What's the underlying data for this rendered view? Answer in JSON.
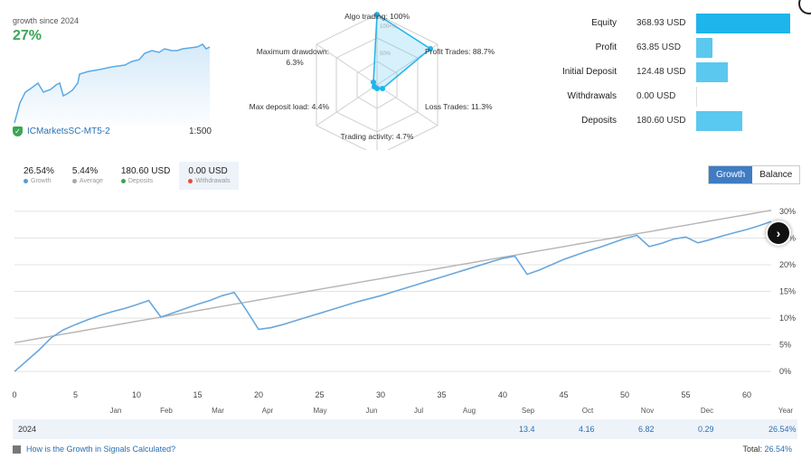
{
  "summary": {
    "label": "growth since 2024",
    "percent": "27%"
  },
  "account": {
    "broker": "ICMarketsSC-MT5-2",
    "leverage": "1:500"
  },
  "radar": {
    "algo": "Algo trading: 100%",
    "profit": "Profit Trades: 88.7%",
    "loss": "Loss Trades: 11.3%",
    "activity": "Trading activity: 4.7%",
    "maxload": "Max deposit load: 4.4%",
    "drawdown_l1": "Maximum drawdown:",
    "drawdown_l2": "6.3%",
    "tick100": "100+%",
    "tick50": "50%"
  },
  "balance": [
    {
      "label": "Equity",
      "value": "368.93 USD",
      "amount": 368.93
    },
    {
      "label": "Profit",
      "value": "63.85 USD",
      "amount": 63.85
    },
    {
      "label": "Initial Deposit",
      "value": "124.48 USD",
      "amount": 124.48
    },
    {
      "label": "Withdrawals",
      "value": "0.00 USD",
      "amount": 0
    },
    {
      "label": "Deposits",
      "value": "180.60 USD",
      "amount": 180.6
    }
  ],
  "stats": [
    {
      "value": "26.54%",
      "label": "Growth",
      "color": "#5a9bd5"
    },
    {
      "value": "5.44%",
      "label": "Average",
      "color": "#aaaaaa"
    },
    {
      "value": "180.60 USD",
      "label": "Deposits",
      "color": "#3aa655"
    },
    {
      "value": "0.00 USD",
      "label": "Withdrawals",
      "color": "#e74c3c"
    }
  ],
  "tabs": {
    "growth": "Growth",
    "balance": "Balance"
  },
  "chart_data": {
    "type": "line",
    "x": [
      0,
      1,
      2,
      3,
      4,
      5,
      6,
      7,
      8,
      9,
      10,
      11,
      12,
      13,
      14,
      15,
      16,
      17,
      18,
      19,
      20,
      21,
      22,
      23,
      24,
      25,
      26,
      27,
      28,
      29,
      30,
      31,
      32,
      33,
      34,
      35,
      36,
      37,
      38,
      39,
      40,
      41,
      42,
      43,
      44,
      45,
      46,
      47,
      48,
      49,
      50,
      51,
      52,
      53,
      54,
      55,
      56,
      57,
      58,
      59,
      60,
      61,
      62
    ],
    "series": [
      {
        "values": [
          0,
          2,
          4,
          6.3,
          7.8,
          8.8,
          9.7,
          10.5,
          11.2,
          11.8,
          12.5,
          13.3,
          10.2,
          11,
          11.8,
          12.6,
          13.3,
          14.2,
          14.8,
          11.5,
          7.9,
          8.2,
          8.8,
          9.5,
          10.2,
          10.9,
          11.6,
          12.3,
          13,
          13.6,
          14.2,
          14.9,
          15.6,
          16.3,
          17,
          17.7,
          18.4,
          19.1,
          19.8,
          20.5,
          21.2,
          21.6,
          18.2,
          19,
          20,
          21,
          21.8,
          22.6,
          23.3,
          24.1,
          24.9,
          25.5,
          23.4,
          24,
          24.8,
          25.2,
          24.1,
          24.7,
          25.4,
          26,
          26.6,
          27.3,
          28.1
        ]
      },
      {
        "values": [
          5.4,
          5.8,
          6.2,
          6.6,
          7,
          7.4,
          7.8,
          8.2,
          8.6,
          9,
          9.4,
          9.8,
          10.2,
          10.6,
          11,
          11.4,
          11.8,
          12.2,
          12.6,
          13,
          13.4,
          13.8,
          14.2,
          14.6,
          15,
          15.4,
          15.8,
          16.2,
          16.6,
          17,
          17.4,
          17.8,
          18.2,
          18.6,
          19,
          19.4,
          19.8,
          20.2,
          20.6,
          21,
          21.4,
          21.8,
          22.2,
          22.6,
          23,
          23.4,
          23.8,
          24.2,
          24.6,
          25,
          25.4,
          25.8,
          26.2,
          26.6,
          27,
          27.4,
          27.8,
          28.2,
          28.6,
          29,
          29.4,
          29.8,
          30.2
        ]
      }
    ],
    "xticks": [
      0,
      5,
      10,
      15,
      20,
      25,
      30,
      35,
      40,
      45,
      50,
      55,
      60
    ],
    "yticks": [
      "30%",
      "25%",
      "20%",
      "15%",
      "10%",
      "5%",
      "0%"
    ],
    "months": [
      "Jan",
      "Feb",
      "Mar",
      "Apr",
      "May",
      "Jun",
      "Jul",
      "Aug",
      "Sep",
      "Oct",
      "Nov",
      "Dec",
      "Year"
    ],
    "ylim": [
      -2,
      31
    ],
    "xlim": [
      0,
      62
    ]
  },
  "year_row": {
    "year": "2024",
    "sep": "13.4",
    "oct": "4.16",
    "nov": "6.82",
    "dec": "0.29",
    "total": "26.54%"
  },
  "footer": {
    "help": "How is the Growth in Signals Calculated?",
    "total_label": "Total:",
    "total_value": "26.54%"
  }
}
